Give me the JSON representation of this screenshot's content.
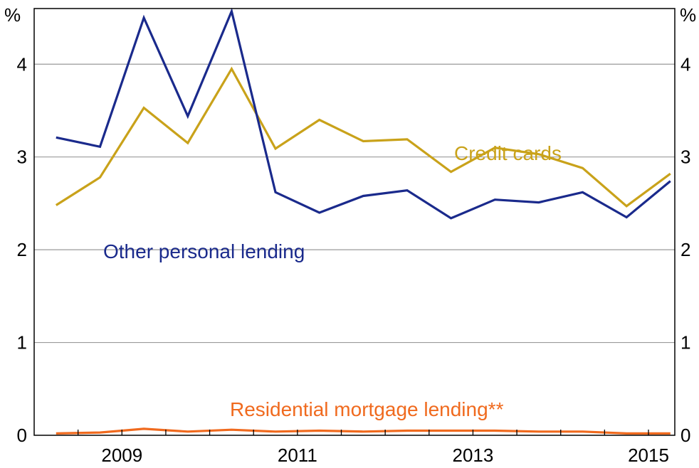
{
  "chart_data": {
    "type": "line",
    "title": "",
    "xlabel": "",
    "ylabel_left": "%",
    "ylabel_right": "%",
    "ylim": [
      0,
      4.6
    ],
    "y_ticks": [
      0,
      1,
      2,
      3,
      4
    ],
    "y_tick_labels": [
      "0",
      "1",
      "2",
      "3",
      "4"
    ],
    "xlim": [
      2008.0,
      2015.3
    ],
    "x_minor_ticks": [
      2008.5,
      2009.0,
      2009.5,
      2010.0,
      2010.5,
      2011.0,
      2011.5,
      2012.0,
      2012.5,
      2013.0,
      2013.5,
      2014.0,
      2014.5,
      2015.0
    ],
    "x_tick_labels": [
      {
        "value": 2009,
        "label": "2009"
      },
      {
        "value": 2011,
        "label": "2011"
      },
      {
        "value": 2013,
        "label": "2013"
      },
      {
        "value": 2015,
        "label": "2015"
      }
    ],
    "grid": true,
    "x": [
      2008.25,
      2008.75,
      2009.25,
      2009.75,
      2010.25,
      2010.75,
      2011.25,
      2011.75,
      2012.25,
      2012.75,
      2013.25,
      2013.75,
      2014.25,
      2014.75,
      2015.25
    ],
    "series": [
      {
        "name": "Other personal lending",
        "color": "#1a2a8c",
        "values": [
          3.21,
          3.11,
          4.5,
          3.44,
          4.57,
          2.62,
          2.4,
          2.58,
          2.64,
          2.34,
          2.54,
          2.51,
          2.62,
          2.35,
          2.74
        ]
      },
      {
        "name": "Credit cards",
        "color": "#c9a21a",
        "values": [
          2.48,
          2.78,
          3.53,
          3.15,
          3.95,
          3.09,
          3.4,
          3.17,
          3.19,
          2.84,
          3.1,
          3.03,
          2.88,
          2.47,
          2.82
        ]
      },
      {
        "name": "Residential mortgage lending**",
        "color": "#f06a1e",
        "values": [
          0.02,
          0.03,
          0.07,
          0.04,
          0.06,
          0.04,
          0.05,
          0.04,
          0.05,
          0.05,
          0.05,
          0.04,
          0.04,
          0.02,
          0.02
        ]
      }
    ]
  }
}
